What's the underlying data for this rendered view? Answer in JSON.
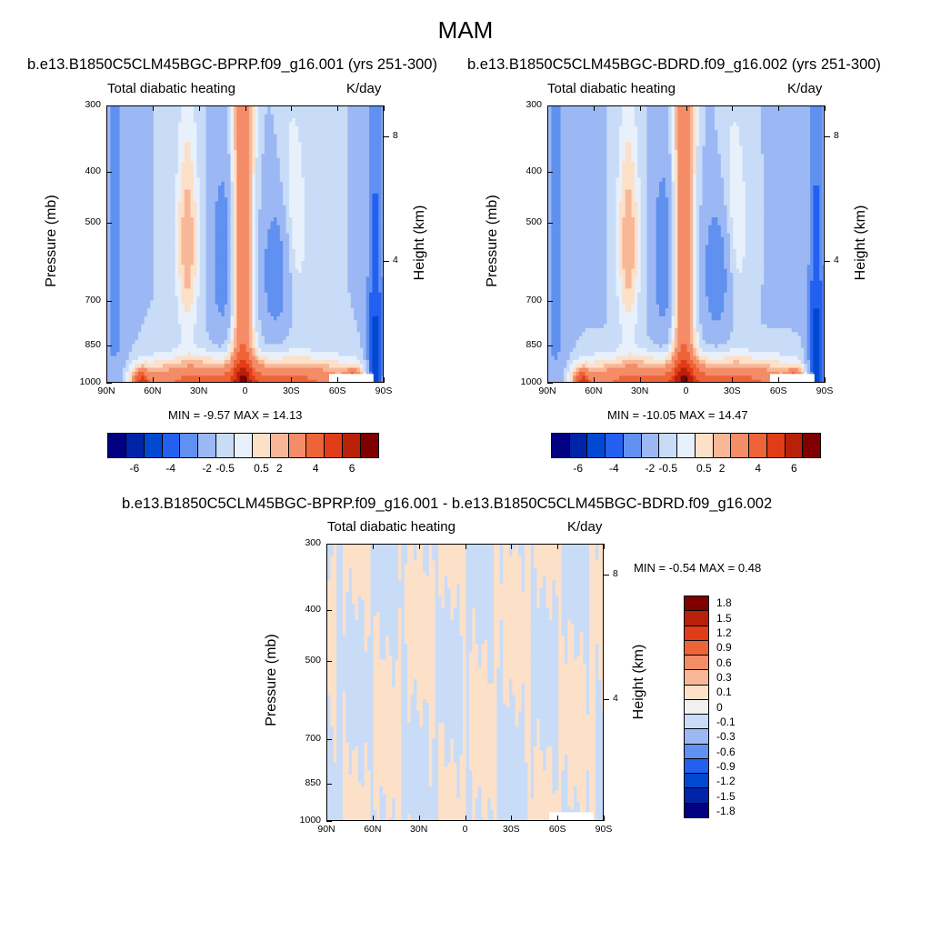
{
  "title": "MAM",
  "colors": {
    "main": [
      "#000080",
      "#0024a8",
      "#0048d0",
      "#2460f0",
      "#6090f0",
      "#9cb8f4",
      "#c8dcf8",
      "#e8f0fc",
      "#fde0c8",
      "#f8b898",
      "#f48c68",
      "#ee6438",
      "#e03c18",
      "#b82008",
      "#800000"
    ],
    "diff": [
      "#800000",
      "#b82008",
      "#e03c18",
      "#ee6438",
      "#f48c68",
      "#f8b898",
      "#fde0c8",
      "#f0f0f0",
      "#c8dcf8",
      "#9cb8f4",
      "#6090f0",
      "#2460f0",
      "#0048d0",
      "#0024a8",
      "#000080"
    ]
  },
  "panels": [
    {
      "case_title": "b.e13.B1850C5CLM45BGC-BPRP.f09_g16.001 (yrs 251-300)",
      "left_label": "Total diabatic heating",
      "right_label": "K/day",
      "ylabel": "Pressure (mb)",
      "y2label": "Height (km)",
      "stats": "MIN =  -9.57  MAX =  14.13"
    },
    {
      "case_title": "b.e13.B1850C5CLM45BGC-BDRD.f09_g16.002 (yrs 251-300)",
      "left_label": "Total diabatic heating",
      "right_label": "K/day",
      "ylabel": "Pressure (mb)",
      "y2label": "Height (km)",
      "stats": "MIN =  -10.05  MAX =  14.47"
    },
    {
      "case_title": "b.e13.B1850C5CLM45BGC-BPRP.f09_g16.001 - b.e13.B1850C5CLM45BGC-BDRD.f09_g16.002",
      "left_label": "Total diabatic heating",
      "right_label": "K/day",
      "ylabel": "Pressure (mb)",
      "y2label": "Height (km)",
      "stats": "MIN =  -0.54  MAX =   0.48"
    }
  ],
  "chart_data": {
    "type": "heatmap",
    "x_ticks": [
      "90N",
      "60N",
      "30N",
      "0",
      "30S",
      "60S",
      "90S"
    ],
    "y_ticks": [
      "300",
      "400",
      "500",
      "700",
      "850",
      "1000"
    ],
    "y_tick_values": [
      300,
      400,
      500,
      700,
      850,
      1000
    ],
    "y2_ticks": [
      "8",
      "4"
    ],
    "y2_tick_values": [
      8,
      4
    ],
    "ylim": [
      1000,
      300
    ],
    "y_scale": "log",
    "colorbar_main_labels": [
      "-6",
      "-4",
      "-2",
      "-0.5",
      "0.5",
      "2",
      "4",
      "6"
    ],
    "colorbar_diff_labels": [
      "1.8",
      "1.5",
      "1.2",
      "0.9",
      "0.6",
      "0.3",
      "0.1",
      "0",
      "-0.1",
      "-0.3",
      "-0.6",
      "-0.9",
      "-1.2",
      "-1.5",
      "-1.8"
    ]
  }
}
